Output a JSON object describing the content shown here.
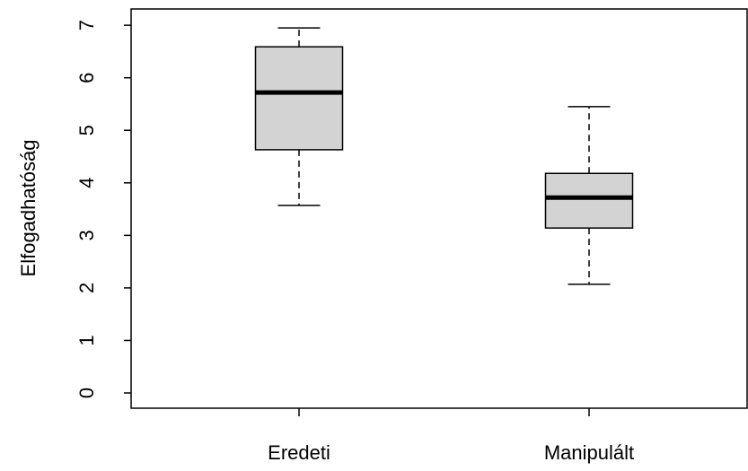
{
  "chart_data": {
    "type": "box",
    "ylabel": "Elfogadhatóság",
    "categories": [
      "Eredeti",
      "Manipulált"
    ],
    "boxes": [
      {
        "min": 3.57,
        "q1": 4.63,
        "median": 5.72,
        "q3": 6.59,
        "max": 6.95
      },
      {
        "min": 2.07,
        "q1": 3.14,
        "median": 3.72,
        "q3": 4.18,
        "max": 5.45
      }
    ],
    "color": "#d3d3d3",
    "ylim": [
      -0.29,
      7.31
    ],
    "yticks": [
      0,
      1,
      2,
      3,
      4,
      5,
      6,
      7
    ]
  }
}
